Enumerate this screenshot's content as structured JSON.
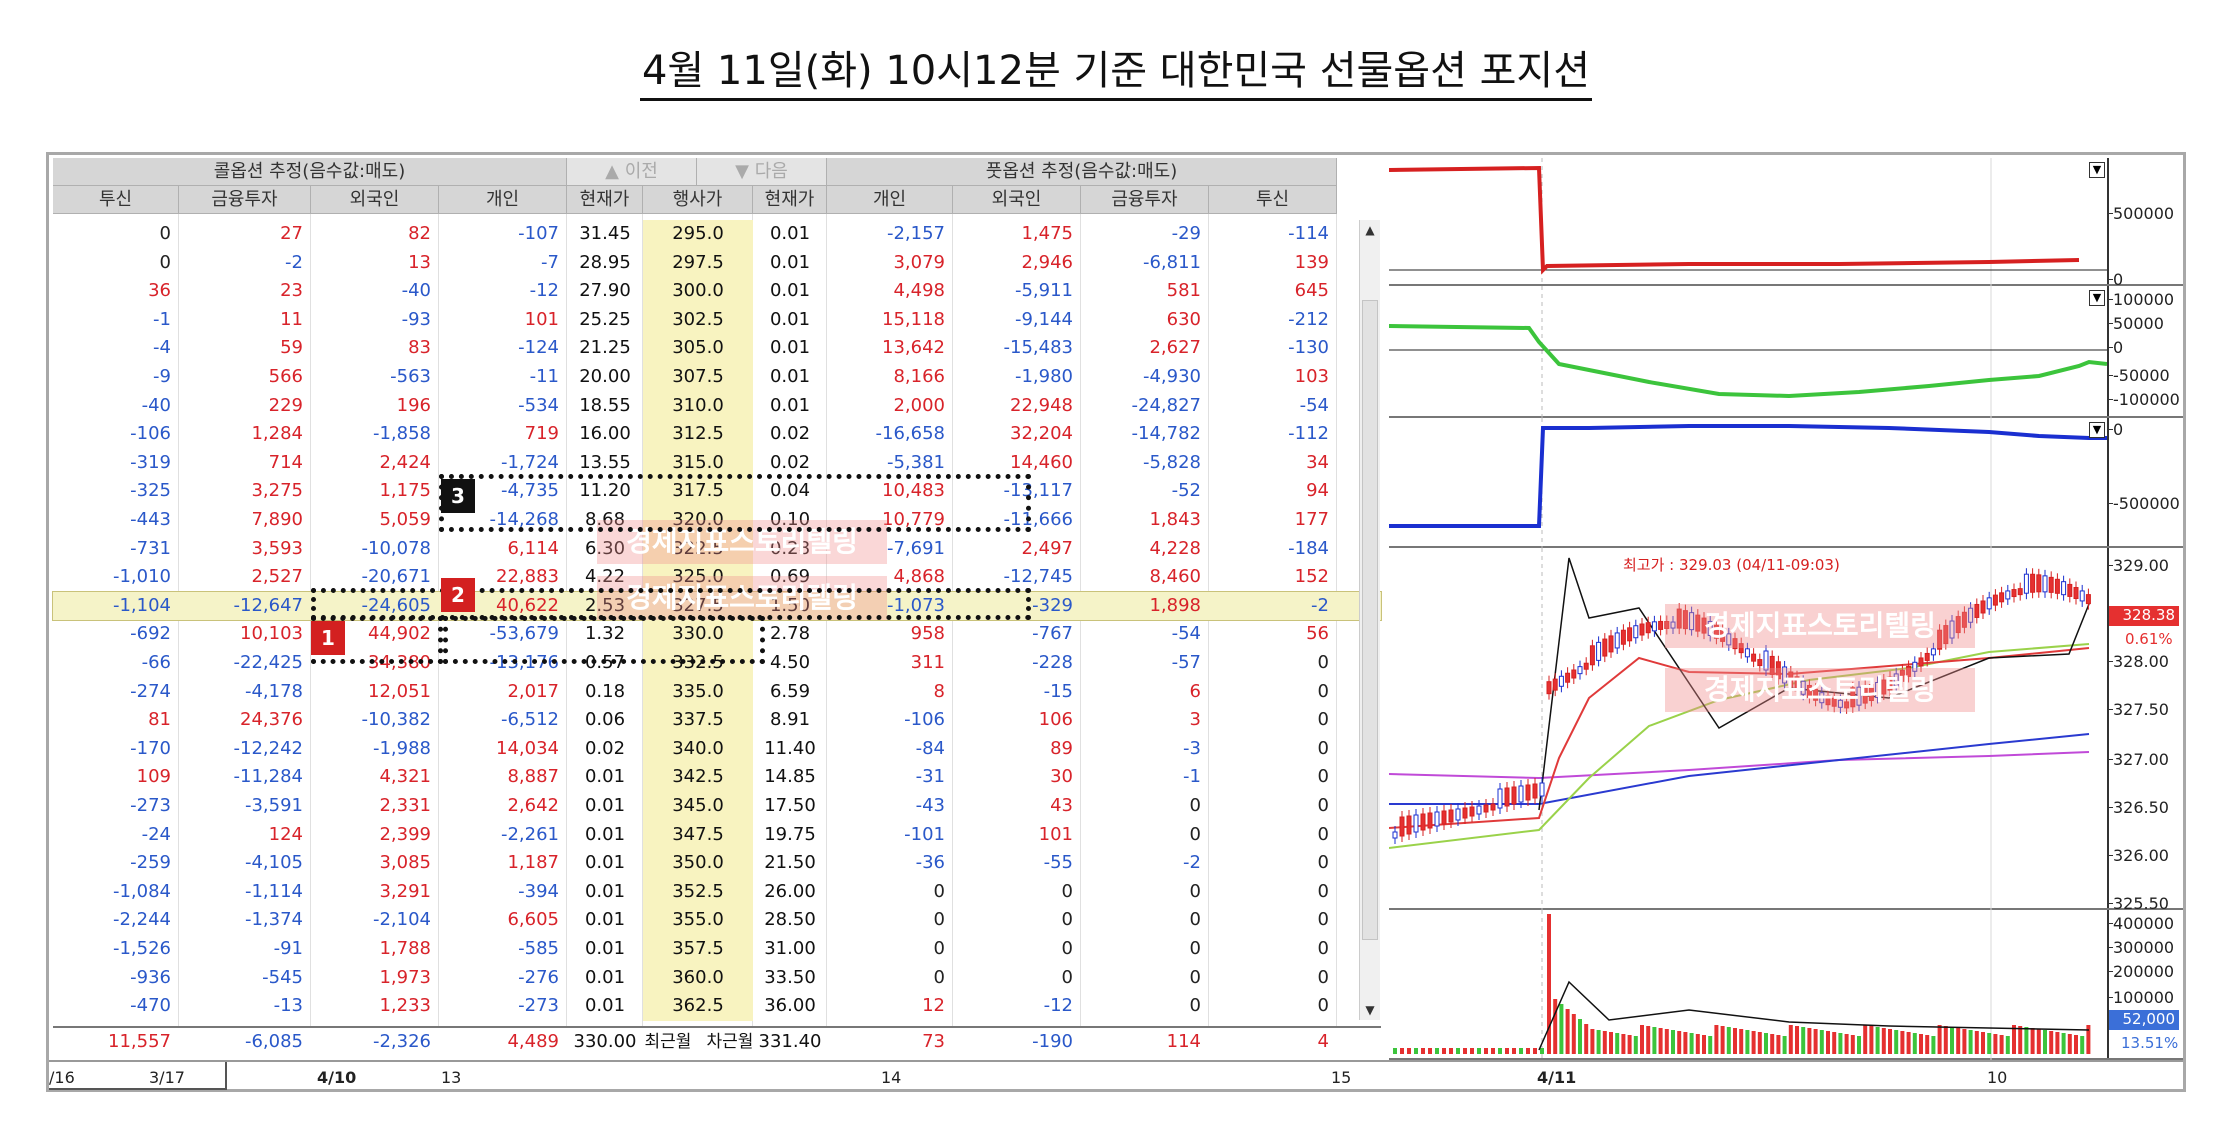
{
  "title": "4월 11일(화) 10시12분 기준 대한민국 선물옵션 포지션",
  "header": {
    "call_group": "콜옵션 추정(음수값:매도)",
    "put_group": "풋옵션 추정(음수값:매도)",
    "prev_btn": "이전",
    "next_btn": "다음",
    "call_cols": [
      "투신",
      "금융투자",
      "외국인",
      "개인"
    ],
    "mid_cols": [
      "현재가",
      "행사가",
      "현재가"
    ],
    "put_cols": [
      "개인",
      "외국인",
      "금융투자",
      "투신"
    ]
  },
  "rows": [
    {
      "c": [
        "0",
        "27",
        "82",
        "-107"
      ],
      "cp": "31.45",
      "k": "295.0",
      "pp": "0.01",
      "p": [
        "-2,157",
        "1,475",
        "-29",
        "-114"
      ]
    },
    {
      "c": [
        "0",
        "-2",
        "13",
        "-7"
      ],
      "cp": "28.95",
      "k": "297.5",
      "pp": "0.01",
      "p": [
        "3,079",
        "2,946",
        "-6,811",
        "139"
      ]
    },
    {
      "c": [
        "36",
        "23",
        "-40",
        "-12"
      ],
      "cp": "27.90",
      "k": "300.0",
      "pp": "0.01",
      "p": [
        "4,498",
        "-5,911",
        "581",
        "645"
      ]
    },
    {
      "c": [
        "-1",
        "11",
        "-93",
        "101"
      ],
      "cp": "25.25",
      "k": "302.5",
      "pp": "0.01",
      "p": [
        "15,118",
        "-9,144",
        "630",
        "-212"
      ]
    },
    {
      "c": [
        "-4",
        "59",
        "83",
        "-124"
      ],
      "cp": "21.25",
      "k": "305.0",
      "pp": "0.01",
      "p": [
        "13,642",
        "-15,483",
        "2,627",
        "-130"
      ]
    },
    {
      "c": [
        "-9",
        "566",
        "-563",
        "-11"
      ],
      "cp": "20.00",
      "k": "307.5",
      "pp": "0.01",
      "p": [
        "8,166",
        "-1,980",
        "-4,930",
        "103"
      ]
    },
    {
      "c": [
        "-40",
        "229",
        "196",
        "-534"
      ],
      "cp": "18.55",
      "k": "310.0",
      "pp": "0.01",
      "p": [
        "2,000",
        "22,948",
        "-24,827",
        "-54"
      ]
    },
    {
      "c": [
        "-106",
        "1,284",
        "-1,858",
        "719"
      ],
      "cp": "16.00",
      "k": "312.5",
      "pp": "0.02",
      "p": [
        "-16,658",
        "32,204",
        "-14,782",
        "-112"
      ]
    },
    {
      "c": [
        "-319",
        "714",
        "2,424",
        "-1,724"
      ],
      "cp": "13.55",
      "k": "315.0",
      "pp": "0.02",
      "p": [
        "-5,381",
        "14,460",
        "-5,828",
        "34"
      ]
    },
    {
      "c": [
        "-325",
        "3,275",
        "1,175",
        "-4,735"
      ],
      "cp": "11.20",
      "k": "317.5",
      "pp": "0.04",
      "p": [
        "10,483",
        "-13,117",
        "-52",
        "94"
      ]
    },
    {
      "c": [
        "-443",
        "7,890",
        "5,059",
        "-14,268"
      ],
      "cp": "8.68",
      "k": "320.0",
      "pp": "0.10",
      "p": [
        "10,779",
        "-11,666",
        "1,843",
        "177"
      ]
    },
    {
      "c": [
        "-731",
        "3,593",
        "-10,078",
        "6,114"
      ],
      "cp": "6.30",
      "k": "322.5",
      "pp": "0.28",
      "p": [
        "-7,691",
        "2,497",
        "4,228",
        "-184"
      ]
    },
    {
      "c": [
        "-1,010",
        "2,527",
        "-20,671",
        "22,883"
      ],
      "cp": "4.22",
      "k": "325.0",
      "pp": "0.69",
      "p": [
        "4,868",
        "-12,745",
        "8,460",
        "152"
      ]
    },
    {
      "c": [
        "-1,104",
        "-12,647",
        "-24,605",
        "40,622"
      ],
      "cp": "2.53",
      "k": "327.5",
      "pp": "1.50",
      "p": [
        "-1,073",
        "-329",
        "1,898",
        "-2"
      ],
      "atm": true
    },
    {
      "c": [
        "-692",
        "10,103",
        "44,902",
        "-53,679"
      ],
      "cp": "1.32",
      "k": "330.0",
      "pp": "2.78",
      "p": [
        "958",
        "-767",
        "-54",
        "56"
      ]
    },
    {
      "c": [
        "-66",
        "-22,425",
        "34,380",
        "-13,176"
      ],
      "cp": "0.57",
      "k": "332.5",
      "pp": "4.50",
      "p": [
        "311",
        "-228",
        "-57",
        "0"
      ]
    },
    {
      "c": [
        "-274",
        "-4,178",
        "12,051",
        "2,017"
      ],
      "cp": "0.18",
      "k": "335.0",
      "pp": "6.59",
      "p": [
        "8",
        "-15",
        "6",
        "0"
      ]
    },
    {
      "c": [
        "81",
        "24,376",
        "-10,382",
        "-6,512"
      ],
      "cp": "0.06",
      "k": "337.5",
      "pp": "8.91",
      "p": [
        "-106",
        "106",
        "3",
        "0"
      ]
    },
    {
      "c": [
        "-170",
        "-12,242",
        "-1,988",
        "14,034"
      ],
      "cp": "0.02",
      "k": "340.0",
      "pp": "11.40",
      "p": [
        "-84",
        "89",
        "-3",
        "0"
      ]
    },
    {
      "c": [
        "109",
        "-11,284",
        "4,321",
        "8,887"
      ],
      "cp": "0.01",
      "k": "342.5",
      "pp": "14.85",
      "p": [
        "-31",
        "30",
        "-1",
        "0"
      ]
    },
    {
      "c": [
        "-273",
        "-3,591",
        "2,331",
        "2,642"
      ],
      "cp": "0.01",
      "k": "345.0",
      "pp": "17.50",
      "p": [
        "-43",
        "43",
        "0",
        "0"
      ]
    },
    {
      "c": [
        "-24",
        "124",
        "2,399",
        "-2,261"
      ],
      "cp": "0.01",
      "k": "347.5",
      "pp": "19.75",
      "p": [
        "-101",
        "101",
        "0",
        "0"
      ]
    },
    {
      "c": [
        "-259",
        "-4,105",
        "3,085",
        "1,187"
      ],
      "cp": "0.01",
      "k": "350.0",
      "pp": "21.50",
      "p": [
        "-36",
        "-55",
        "-2",
        "0"
      ]
    },
    {
      "c": [
        "-1,084",
        "-1,114",
        "3,291",
        "-394"
      ],
      "cp": "0.01",
      "k": "352.5",
      "pp": "26.00",
      "p": [
        "0",
        "0",
        "0",
        "0"
      ]
    },
    {
      "c": [
        "-2,244",
        "-1,374",
        "-2,104",
        "6,605"
      ],
      "cp": "0.01",
      "k": "355.0",
      "pp": "28.50",
      "p": [
        "0",
        "0",
        "0",
        "0"
      ]
    },
    {
      "c": [
        "-1,526",
        "-91",
        "1,788",
        "-585"
      ],
      "cp": "0.01",
      "k": "357.5",
      "pp": "31.00",
      "p": [
        "0",
        "0",
        "0",
        "0"
      ]
    },
    {
      "c": [
        "-936",
        "-545",
        "1,973",
        "-276"
      ],
      "cp": "0.01",
      "k": "360.0",
      "pp": "33.50",
      "p": [
        "0",
        "0",
        "0",
        "0"
      ]
    },
    {
      "c": [
        "-470",
        "-13",
        "1,233",
        "-273"
      ],
      "cp": "0.01",
      "k": "362.5",
      "pp": "36.00",
      "p": [
        "12",
        "-12",
        "0",
        "0"
      ]
    }
  ],
  "summary": {
    "c": [
      "11,557",
      "-6,085",
      "-2,326",
      "4,489"
    ],
    "cp": "330.00",
    "k1": "최근월",
    "k2": "차근월",
    "pp": "331.40",
    "p": [
      "73",
      "-190",
      "114",
      "4"
    ]
  },
  "time_axis": [
    "/16",
    "3/17",
    "4/10",
    "13",
    "14",
    "15",
    "4/11",
    "10"
  ],
  "markers": [
    "1",
    "2",
    "3"
  ],
  "watermark": "경제지표스토리텔링",
  "colors": {
    "positive": "#d8232a",
    "negative": "#2a58c9",
    "header_bg": "#d6d6d6",
    "atm_row": "#f5f3c8",
    "strike_bg": "#f8f3c0",
    "marker_red": "#d32020",
    "marker_black": "#111111"
  },
  "charts": {
    "panel1": {
      "ticks": [
        "500000",
        "0"
      ]
    },
    "panel2": {
      "ticks": [
        "100000",
        "50000",
        "0",
        "-50000",
        "-100000"
      ]
    },
    "panel3": {
      "ticks": [
        "0",
        "-500000"
      ]
    },
    "price": {
      "ticks": [
        "329.00",
        "328.50",
        "328.00",
        "327.50",
        "327.00",
        "326.50",
        "326.00",
        "325.50"
      ],
      "high_label": "최고가 : 329.03 (04/11-09:03)",
      "last_price": "328.38",
      "change_pct": "0.61%"
    },
    "volume": {
      "ticks": [
        "400000",
        "300000",
        "200000",
        "100000"
      ],
      "last_volume": "52,000",
      "volume_pct": "13.51%"
    }
  }
}
